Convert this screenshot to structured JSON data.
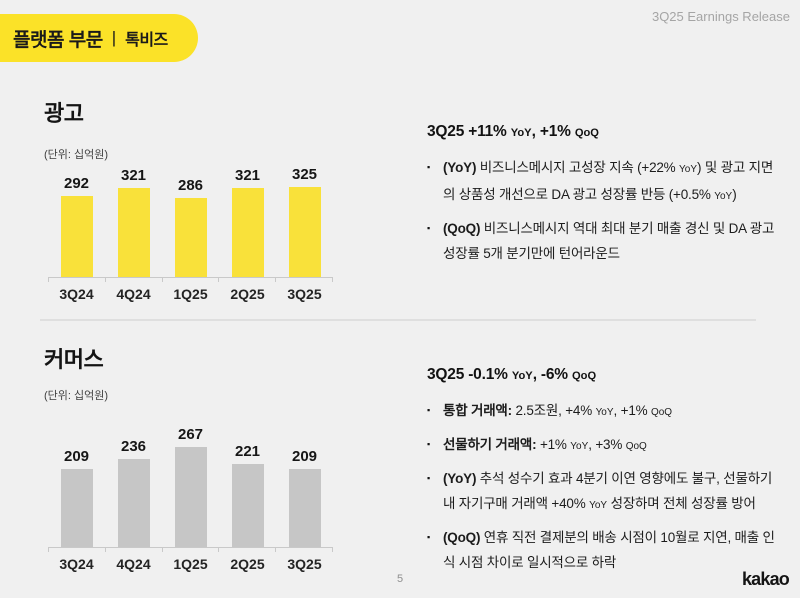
{
  "header": {
    "badge": {
      "primary": "플랫폼 부문",
      "separator": "|",
      "secondary": "톡비즈"
    },
    "release_label": "3Q25 Earnings Release"
  },
  "colors": {
    "background": "#F0F0F0",
    "badge_yellow": "#FBE228",
    "bar_yellow": "#F9E13A",
    "bar_gray": "#C6C6C6"
  },
  "chart_data": [
    {
      "type": "bar",
      "title": "광고",
      "unit_label": "(단위: 십억원)",
      "categories": [
        "3Q24",
        "4Q24",
        "1Q25",
        "2Q25",
        "3Q25"
      ],
      "values": [
        292,
        321,
        286,
        321,
        325
      ],
      "bar_color": "#F9E13A",
      "ylim": [
        0,
        360
      ],
      "grid": false,
      "legend": "none",
      "data_labels": true
    },
    {
      "type": "bar",
      "title": "커머스",
      "unit_label": "(단위: 십억원)",
      "categories": [
        "3Q24",
        "4Q24",
        "1Q25",
        "2Q25",
        "3Q25"
      ],
      "values": [
        209,
        236,
        267,
        221,
        209
      ],
      "bar_color": "#C6C6C6",
      "ylim": [
        0,
        300
      ],
      "grid": false,
      "legend": "none",
      "data_labels": true
    }
  ],
  "sections": [
    {
      "heading": [
        {
          "t": "3Q25 +11% ",
          "b": true
        },
        {
          "t": "YoY",
          "b": true,
          "sm": true
        },
        {
          "t": ", +1% ",
          "b": true
        },
        {
          "t": "QoQ",
          "b": true,
          "sm": true
        }
      ],
      "bullets": [
        [
          {
            "t": "(YoY) ",
            "b": true
          },
          {
            "t": "비즈니스메시지 고성장 지속 (+22% "
          },
          {
            "t": "YoY",
            "sm": true
          },
          {
            "t": ") 및 광고 지면의 상품성 개선으로 DA 광고 성장률 반등 (+0.5% "
          },
          {
            "t": "YoY",
            "sm": true
          },
          {
            "t": ")"
          }
        ],
        [
          {
            "t": "(QoQ) ",
            "b": true
          },
          {
            "t": "비즈니스메시지 역대 최대 분기 매출 경신 및 DA 광고 성장률  5개 분기만에 턴어라운드"
          }
        ]
      ]
    },
    {
      "heading": [
        {
          "t": "3Q25 -0.1% ",
          "b": true
        },
        {
          "t": "YoY",
          "b": true,
          "sm": true
        },
        {
          "t": ", -6% ",
          "b": true
        },
        {
          "t": "QoQ",
          "b": true,
          "sm": true
        }
      ],
      "bullets": [
        [
          {
            "t": "통합 거래액:",
            "b": true
          },
          {
            "t": " 2.5조원, +4% "
          },
          {
            "t": "YoY",
            "sm": true
          },
          {
            "t": ", +1% "
          },
          {
            "t": "QoQ",
            "sm": true
          }
        ],
        [
          {
            "t": "선물하기 거래액:",
            "b": true
          },
          {
            "t": " +1% "
          },
          {
            "t": "YoY",
            "sm": true
          },
          {
            "t": ", +3% "
          },
          {
            "t": "QoQ",
            "sm": true
          }
        ],
        [
          {
            "t": "(YoY) ",
            "b": true
          },
          {
            "t": "추석 성수기 효과 4분기 이연 영향에도 불구, 선물하기 내 자기구매 거래액 +40% "
          },
          {
            "t": "YoY",
            "sm": true
          },
          {
            "t": " 성장하며 전체 성장률 방어"
          }
        ],
        [
          {
            "t": "(QoQ) ",
            "b": true
          },
          {
            "t": "연휴 직전 결제분의 배송 시점이 10월로 지연, 매출 인식 시점 차이로 일시적으로 하락"
          }
        ]
      ]
    }
  ],
  "footer": {
    "page_number": "5",
    "logo_text": "kakao"
  }
}
